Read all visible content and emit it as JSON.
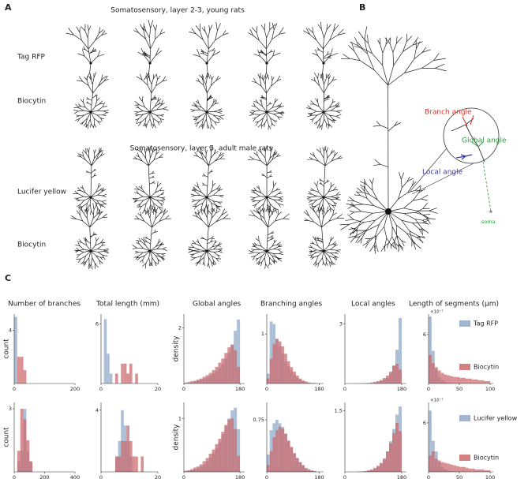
{
  "panels": {
    "a": {
      "label": "A",
      "titles": [
        "Somatosensory, layer 2-3, young rats",
        "Somatosensory, layer 5, adult male rats"
      ],
      "row_labels": [
        "Tag RFP",
        "Biocytin",
        "Lucifer yellow",
        "Biocytin"
      ]
    },
    "b": {
      "label": "B",
      "annotations": [
        {
          "text": "Branch angle",
          "color": "#e0302a"
        },
        {
          "text": "Global angle",
          "color": "#2a9a3a"
        },
        {
          "text": "Local angle",
          "color": "#3a3aa0"
        },
        {
          "text": "soma",
          "color": "#2a9a3a"
        }
      ]
    },
    "c": {
      "label": "C",
      "column_titles": [
        "Number of branches",
        "Total length (mm)",
        "Global angles",
        "Branching angles",
        "Local angles",
        "Length of segments (μm)"
      ],
      "legends": [
        [
          {
            "name": "Tag RFP",
            "color": "#8fa9c8"
          },
          {
            "name": "Biocytin",
            "color": "#cc6b6d"
          }
        ],
        [
          {
            "name": "Lucifer yellow",
            "color": "#8fa9c8"
          },
          {
            "name": "Biocytin",
            "color": "#cc6b6d"
          }
        ]
      ]
    }
  },
  "chart_data": [
    {
      "type": "histogram",
      "ylabel": "count",
      "xlim": [
        0,
        200
      ],
      "ylim": [
        0,
        5.2
      ],
      "xticks": [
        0,
        200
      ],
      "yticks": [
        4
      ],
      "bins": [
        0,
        10,
        20,
        30,
        40
      ],
      "series": [
        {
          "color": "#8fa9c8",
          "values": [
            5,
            0,
            0,
            0
          ]
        },
        {
          "color": "#cc6b6d",
          "values": [
            0,
            2,
            2,
            1
          ]
        }
      ]
    },
    {
      "type": "histogram",
      "xlim": [
        0,
        20
      ],
      "ylim": [
        0,
        7
      ],
      "xticks": [
        0,
        20
      ],
      "yticks": [
        6
      ],
      "bins": [
        0,
        1,
        2,
        3,
        4,
        5,
        6,
        7,
        8,
        9,
        10,
        11,
        12,
        13,
        14
      ],
      "series": [
        {
          "color": "#8fa9c8",
          "values": [
            0,
            6.5,
            3,
            1,
            0,
            0,
            0,
            0,
            0,
            0,
            0,
            0,
            0,
            0
          ]
        },
        {
          "color": "#cc6b6d",
          "values": [
            0,
            0,
            0,
            0,
            0,
            1,
            0,
            2,
            2,
            1,
            2,
            0,
            1,
            0
          ]
        }
      ]
    },
    {
      "type": "histogram",
      "ylabel": "density",
      "xlim": [
        0,
        195
      ],
      "ylim": [
        0,
        2.5
      ],
      "xticks": [
        0,
        180
      ],
      "yticks": [
        2
      ],
      "bins": [
        0,
        10,
        20,
        30,
        40,
        50,
        60,
        70,
        80,
        90,
        100,
        110,
        120,
        130,
        140,
        150,
        160,
        170,
        180
      ],
      "series": [
        {
          "color": "#8fa9c8",
          "values": [
            0.02,
            0.03,
            0.05,
            0.07,
            0.1,
            0.13,
            0.17,
            0.22,
            0.28,
            0.35,
            0.45,
            0.55,
            0.7,
            0.9,
            1.1,
            1.4,
            1.9,
            2.3
          ]
        },
        {
          "color": "#cc6b6d",
          "values": [
            0.03,
            0.05,
            0.08,
            0.1,
            0.14,
            0.18,
            0.24,
            0.3,
            0.38,
            0.48,
            0.6,
            0.75,
            0.9,
            1.1,
            1.3,
            1.4,
            1.2,
            0.6
          ]
        }
      ]
    },
    {
      "type": "histogram",
      "xlim": [
        0,
        195
      ],
      "ylim": [
        0,
        1.4
      ],
      "xticks": [
        0,
        180
      ],
      "yticks": [
        1
      ],
      "bins": [
        0,
        10,
        20,
        30,
        40,
        50,
        60,
        70,
        80,
        90,
        100,
        110,
        120,
        130,
        140,
        150,
        160,
        170,
        180
      ],
      "series": [
        {
          "color": "#8fa9c8",
          "values": [
            0.2,
            1.25,
            1.2,
            0.9,
            0.75,
            0.6,
            0.45,
            0.35,
            0.25,
            0.18,
            0.12,
            0.08,
            0.05,
            0.03,
            0.02,
            0.01,
            0.01,
            0
          ]
        },
        {
          "color": "#cc6b6d",
          "values": [
            0.1,
            0.5,
            0.8,
            0.9,
            0.85,
            0.75,
            0.6,
            0.45,
            0.33,
            0.24,
            0.16,
            0.1,
            0.06,
            0.04,
            0.02,
            0.01,
            0.01,
            0
          ]
        }
      ]
    },
    {
      "type": "histogram",
      "xlim": [
        0,
        195
      ],
      "ylim": [
        0,
        3.5
      ],
      "xticks": [
        0,
        180
      ],
      "yticks": [
        3
      ],
      "bins": [
        0,
        10,
        20,
        30,
        40,
        50,
        60,
        70,
        80,
        90,
        100,
        110,
        120,
        130,
        140,
        150,
        160,
        170,
        180
      ],
      "series": [
        {
          "color": "#8fa9c8",
          "values": [
            0,
            0,
            0,
            0,
            0,
            0.01,
            0.01,
            0.02,
            0.03,
            0.05,
            0.08,
            0.12,
            0.2,
            0.3,
            0.5,
            0.9,
            1.7,
            3.3
          ]
        },
        {
          "color": "#cc6b6d",
          "values": [
            0,
            0,
            0,
            0,
            0.01,
            0.01,
            0.02,
            0.03,
            0.05,
            0.08,
            0.12,
            0.18,
            0.28,
            0.4,
            0.6,
            0.9,
            1.0,
            0.7
          ]
        }
      ]
    },
    {
      "type": "histogram",
      "multiplier": "×10⁻²",
      "xlim": [
        0,
        105
      ],
      "ylim": [
        0,
        8.5
      ],
      "xticks": [
        0,
        50,
        100
      ],
      "yticks": [
        6
      ],
      "bins": [
        0,
        5,
        10,
        15,
        20,
        25,
        30,
        35,
        40,
        45,
        50,
        55,
        60,
        65,
        70,
        75,
        80,
        85,
        90,
        95,
        100
      ],
      "series": [
        {
          "color": "#8fa9c8",
          "values": [
            8.2,
            4,
            1.8,
            0.8,
            0.4,
            0.2,
            0.1,
            0.05,
            0.03,
            0.02,
            0,
            0,
            0,
            0,
            0,
            0,
            0,
            0,
            0,
            0
          ]
        },
        {
          "color": "#cc6b6d",
          "values": [
            3.5,
            2.5,
            2.0,
            1.6,
            1.3,
            1.1,
            1.0,
            0.9,
            0.8,
            0.8,
            0.7,
            0.7,
            0.6,
            0.6,
            0.5,
            0.5,
            0.4,
            0.4,
            0.3,
            0.3
          ]
        }
      ]
    },
    {
      "type": "histogram",
      "ylabel": "count",
      "xlim": [
        0,
        400
      ],
      "ylim": [
        0,
        3.3
      ],
      "xticks": [
        0,
        200,
        400
      ],
      "yticks": [
        3
      ],
      "bins": [
        0,
        20,
        40,
        60,
        80,
        100,
        120
      ],
      "series": [
        {
          "color": "#8fa9c8",
          "values": [
            0,
            0.5,
            1,
            3,
            1,
            0.5
          ]
        },
        {
          "color": "#cc6b6d",
          "values": [
            0,
            1,
            3,
            2.5,
            1.5,
            0.5
          ]
        }
      ]
    },
    {
      "type": "histogram",
      "xlim": [
        0,
        20
      ],
      "ylim": [
        0,
        4.5
      ],
      "xticks": [
        0,
        20
      ],
      "yticks": [
        4
      ],
      "bins": [
        4,
        5,
        6,
        7,
        8,
        9,
        10,
        11,
        12,
        13,
        14,
        15,
        16
      ],
      "series": [
        {
          "color": "#8fa9c8",
          "values": [
            0,
            1,
            2,
            4,
            3,
            2,
            1,
            0,
            0,
            0,
            0,
            0
          ]
        },
        {
          "color": "#cc6b6d",
          "values": [
            0,
            1,
            1,
            2,
            2,
            3,
            2,
            1,
            1,
            0,
            1,
            0
          ]
        }
      ]
    },
    {
      "type": "histogram",
      "ylabel": "density",
      "xlim": [
        0,
        195
      ],
      "ylim": [
        0,
        1.3
      ],
      "xticks": [
        0,
        180
      ],
      "yticks": [
        1
      ],
      "bins": [
        0,
        10,
        20,
        30,
        40,
        50,
        60,
        70,
        80,
        90,
        100,
        110,
        120,
        130,
        140,
        150,
        160,
        170,
        180
      ],
      "series": [
        {
          "color": "#8fa9c8",
          "values": [
            0.01,
            0.02,
            0.03,
            0.05,
            0.07,
            0.1,
            0.14,
            0.2,
            0.27,
            0.35,
            0.45,
            0.55,
            0.7,
            0.85,
            1.0,
            1.15,
            1.2,
            0.8
          ]
        },
        {
          "color": "#cc6b6d",
          "values": [
            0.02,
            0.03,
            0.05,
            0.08,
            0.1,
            0.14,
            0.2,
            0.26,
            0.34,
            0.42,
            0.52,
            0.62,
            0.75,
            0.88,
            0.98,
            1.0,
            0.8,
            0.3
          ]
        }
      ]
    },
    {
      "type": "histogram",
      "xlim": [
        0,
        195
      ],
      "ylim": [
        0,
        1.0
      ],
      "xticks": [
        0,
        180
      ],
      "yticks": [
        0.75
      ],
      "bins": [
        0,
        10,
        20,
        30,
        40,
        50,
        60,
        70,
        80,
        90,
        100,
        110,
        120,
        130,
        140,
        150,
        160,
        170,
        180
      ],
      "series": [
        {
          "color": "#8fa9c8",
          "values": [
            0.25,
            0.6,
            0.7,
            0.75,
            0.7,
            0.65,
            0.55,
            0.45,
            0.35,
            0.27,
            0.2,
            0.14,
            0.1,
            0.06,
            0.04,
            0.02,
            0.01,
            0
          ]
        },
        {
          "color": "#cc6b6d",
          "values": [
            0.1,
            0.3,
            0.5,
            0.6,
            0.65,
            0.62,
            0.55,
            0.45,
            0.36,
            0.27,
            0.2,
            0.14,
            0.09,
            0.05,
            0.03,
            0.02,
            0.01,
            0
          ]
        }
      ]
    },
    {
      "type": "histogram",
      "xlim": [
        0,
        195
      ],
      "ylim": [
        0,
        1.7
      ],
      "xticks": [
        0,
        180
      ],
      "yticks": [
        1.5
      ],
      "bins": [
        0,
        10,
        20,
        30,
        40,
        50,
        60,
        70,
        80,
        90,
        100,
        110,
        120,
        130,
        140,
        150,
        160,
        170,
        180
      ],
      "series": [
        {
          "color": "#8fa9c8",
          "values": [
            0,
            0,
            0,
            0,
            0,
            0.01,
            0.01,
            0.02,
            0.04,
            0.07,
            0.12,
            0.2,
            0.3,
            0.5,
            0.75,
            1.05,
            1.4,
            1.6
          ]
        },
        {
          "color": "#cc6b6d",
          "values": [
            0,
            0,
            0,
            0,
            0.01,
            0.01,
            0.02,
            0.04,
            0.06,
            0.1,
            0.15,
            0.22,
            0.33,
            0.5,
            0.7,
            0.95,
            1.2,
            1.0
          ]
        }
      ]
    },
    {
      "type": "histogram",
      "multiplier": "×10⁻²",
      "xlim": [
        0,
        105
      ],
      "ylim": [
        0,
        8.5
      ],
      "xticks": [
        0,
        50,
        100
      ],
      "yticks": [
        6
      ],
      "bins": [
        0,
        5,
        10,
        15,
        20,
        25,
        30,
        35,
        40,
        45,
        50,
        55,
        60,
        65,
        70,
        75,
        80,
        85,
        90,
        95,
        100
      ],
      "series": [
        {
          "color": "#8fa9c8",
          "values": [
            7.5,
            3.8,
            2.5,
            1.2,
            0.6,
            0.3,
            0.15,
            0.1,
            0.05,
            0.03,
            0,
            0,
            0,
            0,
            0,
            0,
            0,
            0,
            0,
            0
          ]
        },
        {
          "color": "#cc6b6d",
          "values": [
            2,
            2.5,
            1.6,
            1.4,
            1.2,
            1.1,
            1.0,
            0.9,
            0.8,
            0.7,
            0.6,
            0.6,
            0.5,
            0.4,
            0.4,
            0.3,
            0.3,
            0.3,
            0.2,
            0.2
          ]
        }
      ]
    }
  ]
}
